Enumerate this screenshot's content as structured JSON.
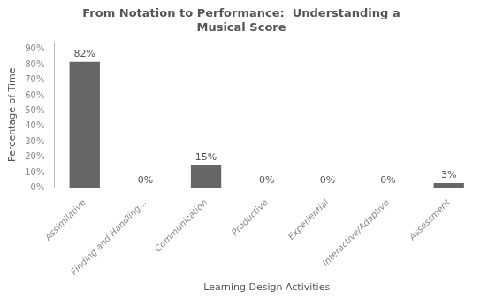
{
  "chart_data": {
    "type": "bar",
    "title": "From Notation to Performance:  Understanding a\nMusical Score",
    "xlabel": "Learning Design Activities",
    "ylabel": "Percentage of Time",
    "categories": [
      "Assimilative",
      "Finding and Handling...",
      "Communication",
      "Productive",
      "Experiential",
      "Interactive/Adaptive",
      "Assessment"
    ],
    "values": [
      82,
      0,
      15,
      0,
      0,
      0,
      3
    ],
    "value_labels": [
      "82%",
      "0%",
      "15%",
      "0%",
      "0%",
      "0%",
      "3%"
    ],
    "data_labels": true,
    "color": "#666666",
    "ylim": [
      0,
      95
    ],
    "yticks": [
      {
        "value": 0,
        "label": "0%"
      },
      {
        "value": 10,
        "label": "10%"
      },
      {
        "value": 20,
        "label": "20%"
      },
      {
        "value": 30,
        "label": "30%"
      },
      {
        "value": 40,
        "label": "40%"
      },
      {
        "value": 50,
        "label": "50%"
      },
      {
        "value": 60,
        "label": "60%"
      },
      {
        "value": 70,
        "label": "70%"
      },
      {
        "value": 80,
        "label": "80%"
      },
      {
        "value": 90,
        "label": "90%"
      }
    ],
    "grid": false
  }
}
